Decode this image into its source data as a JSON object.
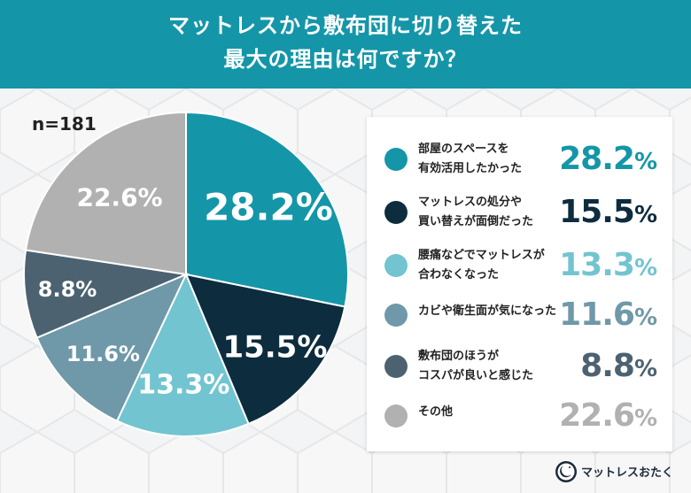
{
  "header": {
    "title_line1": "マットレスから敷布団に切り替えた",
    "title_line2": "最大の理由は何ですか？",
    "background": "#1496a8"
  },
  "sample_size": "n=181",
  "legend": {
    "items": [
      {
        "label": "部屋のスペースを\n有効活用したかった",
        "value": "28.2",
        "unit": "%",
        "color": "#1496a8"
      },
      {
        "label": "マットレスの処分や\n買い替えが面倒だった",
        "value": "15.5",
        "unit": "%",
        "color": "#0d2c3e"
      },
      {
        "label": "腰痛などでマットレスが\n合わなくなった",
        "value": "13.3",
        "unit": "%",
        "color": "#73c4d1"
      },
      {
        "label": "カビや衛生面が気になった",
        "value": "11.6",
        "unit": "%",
        "color": "#6f98a8"
      },
      {
        "label": "敷布団のほうが\nコスパが良いと感じた",
        "value": "8.8",
        "unit": "%",
        "color": "#4c6271"
      },
      {
        "label": "その他",
        "value": "22.6",
        "unit": "%",
        "color": "#b1b1b1"
      }
    ]
  },
  "brand": {
    "name": "マットレスおたく",
    "logo_icon": "sleeping-moon-logo-icon"
  },
  "chart_data": {
    "type": "pie",
    "title": "マットレスから敷布団に切り替えた最大の理由は何ですか？",
    "sample": "n=181",
    "categories": [
      "部屋のスペースを有効活用したかった",
      "マットレスの処分や買い替えが面倒だった",
      "腰痛などでマットレスが合わなくなった",
      "カビや衛生面が気になった",
      "敷布団のほうがコスパが良いと感じた",
      "その他"
    ],
    "values": [
      28.2,
      15.5,
      13.3,
      11.6,
      8.8,
      22.6
    ],
    "data_labels": [
      "28.2%",
      "15.5%",
      "13.3%",
      "11.6%",
      "8.8%",
      "22.6%"
    ],
    "colors": [
      "#1496a8",
      "#0d2c3e",
      "#73c4d1",
      "#6f98a8",
      "#4c6271",
      "#b1b1b1"
    ],
    "legend_position": "right"
  }
}
